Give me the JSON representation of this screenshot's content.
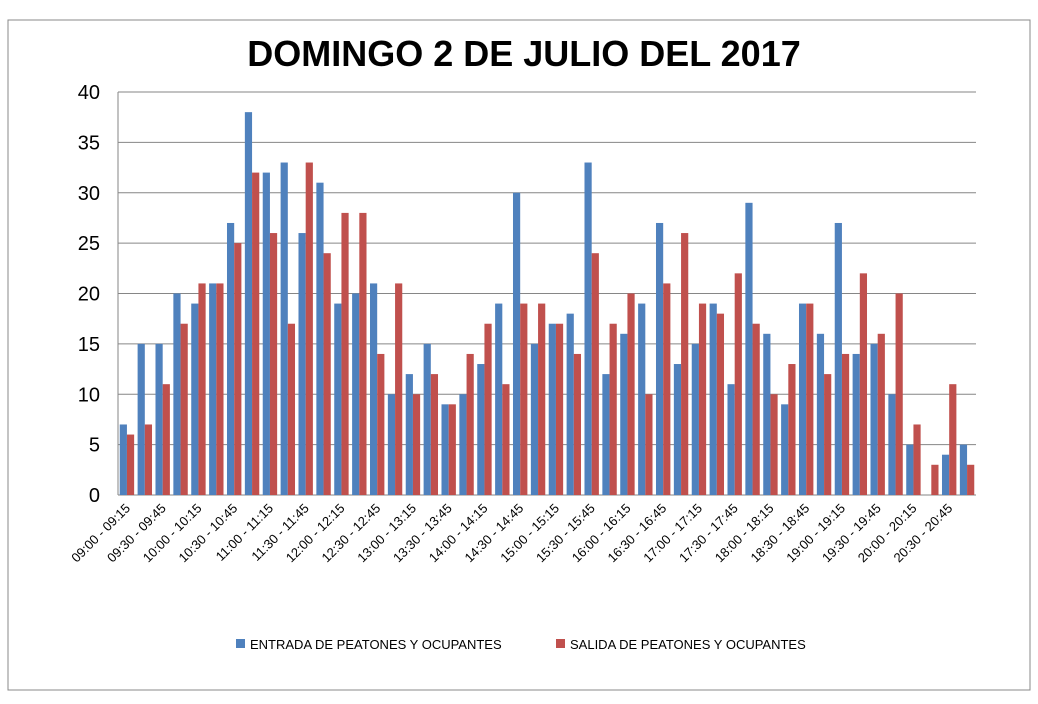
{
  "chart_data": {
    "type": "bar",
    "title": "DOMINGO 2 DE JULIO DEL 2017",
    "categories": [
      "09:00 - 09:15",
      null,
      "09:30 - 09:45",
      null,
      "10:00 - 10:15",
      null,
      "10:30 - 10:45",
      null,
      "11:00 - 11:15",
      null,
      "11:30 - 11:45",
      null,
      "12:00 - 12:15",
      null,
      "12:30 - 12:45",
      null,
      "13:00 - 13:15",
      null,
      "13:30 - 13:45",
      null,
      "14:00 - 14:15",
      null,
      "14:30 - 14:45",
      null,
      "15:00 - 15:15",
      null,
      "15:30 - 15:45",
      null,
      "16:00 - 16:15",
      null,
      "16:30 - 16:45",
      null,
      "17:00 - 17:15",
      null,
      "17:30 - 17:45",
      null,
      "18:00 - 18:15",
      null,
      "18:30 - 18:45",
      null,
      "19:00 - 19:15",
      null,
      "19:30 - 19:45",
      null,
      "20:00 - 20:15",
      null,
      "20:30 - 20:45",
      null
    ],
    "series": [
      {
        "name": "ENTRADA DE PEATONES Y OCUPANTES",
        "color": "#4f81bd",
        "values": [
          7,
          15,
          15,
          20,
          19,
          21,
          27,
          38,
          32,
          33,
          26,
          31,
          19,
          20,
          21,
          10,
          12,
          15,
          9,
          10,
          13,
          19,
          30,
          15,
          17,
          18,
          33,
          12,
          16,
          19,
          27,
          13,
          15,
          19,
          11,
          29,
          16,
          9,
          19,
          16,
          27,
          14,
          15,
          10,
          5,
          0,
          4,
          5
        ]
      },
      {
        "name": "SALIDA DE PEATONES Y OCUPANTES",
        "color": "#c0504d",
        "values": [
          6,
          7,
          11,
          17,
          21,
          21,
          25,
          32,
          26,
          17,
          33,
          24,
          28,
          28,
          14,
          21,
          10,
          12,
          9,
          14,
          17,
          11,
          19,
          19,
          17,
          14,
          24,
          17,
          20,
          10,
          21,
          26,
          19,
          18,
          22,
          17,
          10,
          13,
          19,
          12,
          14,
          22,
          16,
          20,
          7,
          3,
          11,
          3
        ]
      }
    ],
    "ylim": [
      0,
      40
    ],
    "yticks": [
      0,
      5,
      10,
      15,
      20,
      25,
      30,
      35,
      40
    ],
    "grid": true,
    "legend": "bottom"
  }
}
